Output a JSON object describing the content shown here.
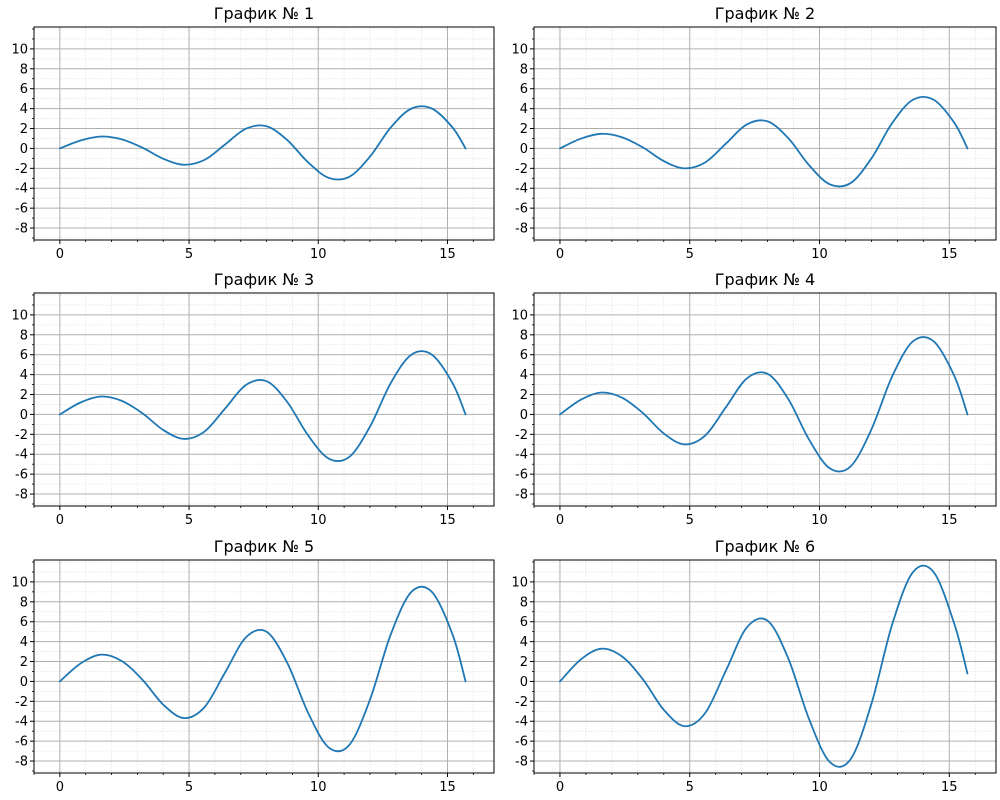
{
  "figure": {
    "colors": {
      "series": "#1f77b4",
      "major_grid": "#b0b0b0",
      "minor_grid": "#e4e4e4"
    }
  },
  "chart_data": [
    {
      "type": "line",
      "title": "График № 1",
      "xlabel": "",
      "ylabel": "",
      "xlim": [
        -1,
        16.8
      ],
      "ylim": [
        -9.2,
        12.2
      ],
      "x_ticks": [
        0,
        5,
        10,
        15
      ],
      "y_ticks": [
        -8,
        -6,
        -4,
        -2,
        0,
        2,
        4,
        6,
        8,
        10
      ],
      "grid": true,
      "minor_grid": true,
      "series": [
        {
          "x": [
            0,
            0.8,
            1.6,
            2.4,
            3.2,
            4.0,
            4.8,
            5.6,
            6.4,
            7.2,
            8.0,
            8.8,
            9.6,
            10.4,
            11.2,
            12.0,
            12.8,
            13.6,
            14.4,
            15.2,
            15.7
          ],
          "y": [
            0,
            0.8,
            1.2,
            0.91,
            0.07,
            -1.04,
            -1.64,
            -1.15,
            0.41,
            1.98,
            2.23,
            0.84,
            -1.38,
            -2.95,
            -2.85,
            -0.82,
            2.09,
            4.0,
            4.0,
            2.09,
            0
          ]
        }
      ]
    },
    {
      "type": "line",
      "title": "График № 2",
      "xlabel": "",
      "ylabel": "",
      "xlim": [
        -1,
        16.8
      ],
      "ylim": [
        -9.2,
        12.2
      ],
      "x_ticks": [
        0,
        5,
        10,
        15
      ],
      "y_ticks": [
        -8,
        -6,
        -4,
        -2,
        0,
        2,
        4,
        6,
        8,
        10
      ],
      "grid": true,
      "minor_grid": true,
      "series": [
        {
          "x": [
            0,
            0.8,
            1.6,
            2.4,
            3.2,
            4.0,
            4.8,
            5.6,
            6.4,
            7.2,
            8.0,
            8.8,
            9.6,
            10.4,
            11.2,
            12.0,
            12.8,
            13.6,
            14.4,
            15.2,
            15.7
          ],
          "y": [
            0,
            0.98,
            1.47,
            1.11,
            0.09,
            -1.27,
            -2.0,
            -1.4,
            0.5,
            2.41,
            2.72,
            1.02,
            -1.69,
            -3.61,
            -3.48,
            -1.0,
            2.55,
            4.89,
            4.89,
            2.55,
            0
          ]
        }
      ]
    },
    {
      "type": "line",
      "title": "График № 3",
      "xlabel": "",
      "ylabel": "",
      "xlim": [
        -1,
        16.8
      ],
      "ylim": [
        -9.2,
        12.2
      ],
      "x_ticks": [
        0,
        5,
        10,
        15
      ],
      "y_ticks": [
        -8,
        -6,
        -4,
        -2,
        0,
        2,
        4,
        6,
        8,
        10
      ],
      "grid": true,
      "minor_grid": true,
      "series": [
        {
          "x": [
            0,
            0.8,
            1.6,
            2.4,
            3.2,
            4.0,
            4.8,
            5.6,
            6.4,
            7.2,
            8.0,
            8.8,
            9.6,
            10.4,
            11.2,
            12.0,
            12.8,
            13.6,
            14.4,
            15.2,
            15.7
          ],
          "y": [
            0,
            1.2,
            1.8,
            1.36,
            0.11,
            -1.56,
            -2.46,
            -1.72,
            0.61,
            2.96,
            3.34,
            1.25,
            -2.08,
            -4.43,
            -4.27,
            -1.23,
            3.13,
            6.0,
            6.0,
            3.13,
            0
          ]
        }
      ]
    },
    {
      "type": "line",
      "title": "График № 4",
      "xlabel": "",
      "ylabel": "",
      "xlim": [
        -1,
        16.8
      ],
      "ylim": [
        -9.2,
        12.2
      ],
      "x_ticks": [
        0,
        5,
        10,
        15
      ],
      "y_ticks": [
        -8,
        -6,
        -4,
        -2,
        0,
        2,
        4,
        6,
        8,
        10
      ],
      "grid": true,
      "minor_grid": true,
      "series": [
        {
          "x": [
            0,
            0.8,
            1.6,
            2.4,
            3.2,
            4.0,
            4.8,
            5.6,
            6.4,
            7.2,
            8.0,
            8.8,
            9.6,
            10.4,
            11.2,
            12.0,
            12.8,
            13.6,
            14.4,
            15.2,
            15.7
          ],
          "y": [
            0,
            1.47,
            2.2,
            1.67,
            0.13,
            -1.91,
            -3.01,
            -2.11,
            0.75,
            3.62,
            4.08,
            1.53,
            -2.54,
            -5.42,
            -5.22,
            -1.5,
            3.83,
            7.34,
            7.34,
            3.83,
            0
          ]
        }
      ]
    },
    {
      "type": "line",
      "title": "График № 5",
      "xlabel": "",
      "ylabel": "",
      "xlim": [
        -1,
        16.8
      ],
      "ylim": [
        -9.2,
        12.2
      ],
      "x_ticks": [
        0,
        5,
        10,
        15
      ],
      "y_ticks": [
        -8,
        -6,
        -4,
        -2,
        0,
        2,
        4,
        6,
        8,
        10
      ],
      "grid": true,
      "minor_grid": true,
      "series": [
        {
          "x": [
            0,
            0.8,
            1.6,
            2.4,
            3.2,
            4.0,
            4.8,
            5.6,
            6.4,
            7.2,
            8.0,
            8.8,
            9.6,
            10.4,
            11.2,
            12.0,
            12.8,
            13.6,
            14.4,
            15.2,
            15.7
          ],
          "y": [
            0,
            1.8,
            2.69,
            2.04,
            0.16,
            -2.33,
            -3.68,
            -2.58,
            0.92,
            4.43,
            4.99,
            1.87,
            -3.11,
            -6.63,
            -6.39,
            -1.84,
            4.69,
            8.98,
            8.98,
            4.69,
            0
          ]
        }
      ]
    },
    {
      "type": "line",
      "title": "График № 6",
      "xlabel": "",
      "ylabel": "",
      "xlim": [
        -1,
        16.8
      ],
      "ylim": [
        -9.2,
        12.2
      ],
      "x_ticks": [
        0,
        5,
        10,
        15
      ],
      "y_ticks": [
        -8,
        -6,
        -4,
        -2,
        0,
        2,
        4,
        6,
        8,
        10
      ],
      "grid": true,
      "minor_grid": true,
      "series": [
        {
          "x": [
            0,
            0.8,
            1.6,
            2.4,
            3.2,
            4.0,
            4.8,
            5.6,
            6.4,
            7.2,
            8.0,
            8.8,
            9.6,
            10.4,
            11.2,
            12.0,
            12.8,
            13.6,
            14.4,
            15.2,
            15.7
          ],
          "y": [
            0,
            2.2,
            3.29,
            2.49,
            0.2,
            -2.85,
            -4.5,
            -3.16,
            1.12,
            5.42,
            6.1,
            2.29,
            -3.8,
            -8.11,
            -7.81,
            -2.25,
            5.73,
            10.98,
            10.98,
            5.73,
            0.8
          ]
        }
      ]
    }
  ]
}
